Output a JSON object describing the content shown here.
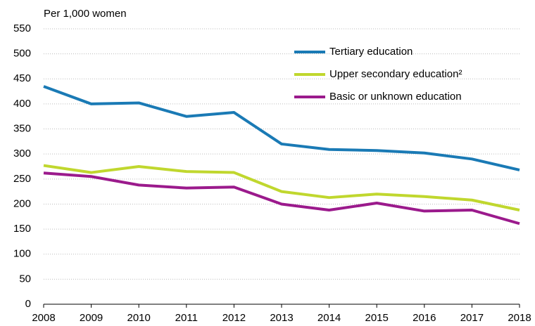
{
  "chart_data": {
    "type": "line",
    "y_axis_label": "Per 1,000 women",
    "x": [
      2008,
      2009,
      2010,
      2011,
      2012,
      2013,
      2014,
      2015,
      2016,
      2017,
      2018
    ],
    "series": [
      {
        "name": "Tertiary education",
        "color": "#1a7ab5",
        "values": [
          435,
          400,
          402,
          375,
          383,
          320,
          309,
          307,
          302,
          290,
          268
        ]
      },
      {
        "name": "Upper secondary education²",
        "color": "#c0d72e",
        "values": [
          277,
          263,
          275,
          265,
          263,
          225,
          213,
          220,
          215,
          208,
          188
        ]
      },
      {
        "name": "Basic or unknown education",
        "color": "#9b1a8c",
        "values": [
          262,
          255,
          238,
          232,
          234,
          200,
          188,
          202,
          186,
          188,
          161
        ]
      }
    ],
    "xlim": [
      2008,
      2018
    ],
    "xticks": [
      2008,
      2009,
      2010,
      2011,
      2012,
      2013,
      2014,
      2015,
      2016,
      2017,
      2018
    ],
    "ylim": [
      0,
      550
    ],
    "yticks": [
      0,
      50,
      100,
      150,
      200,
      250,
      300,
      350,
      400,
      450,
      500,
      550
    ],
    "grid": true,
    "legend": "top-right"
  }
}
